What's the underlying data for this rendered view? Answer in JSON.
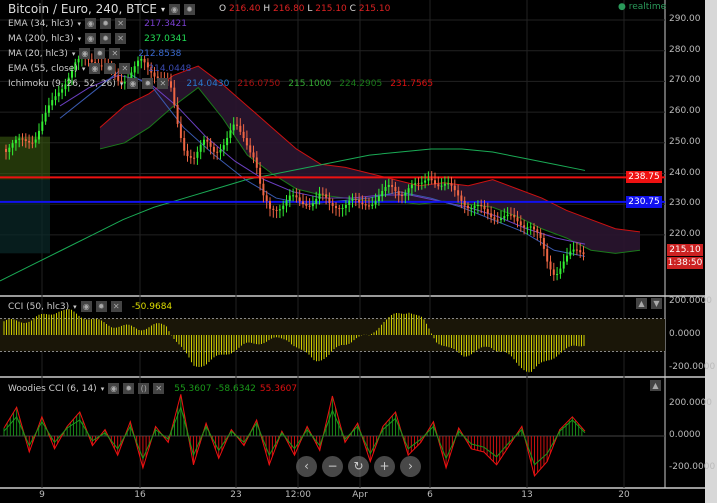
{
  "header": {
    "symbol": "Bitcoin / Euro, 240, BTCE",
    "o_label": "O",
    "o": "216.40",
    "h_label": "H",
    "h": "216.80",
    "l_label": "L",
    "l": "215.10",
    "c_label": "C",
    "c": "215.10",
    "realtime": "realtime"
  },
  "legends": [
    {
      "name": "EMA (34, hlc3)",
      "values": [
        "217.3421"
      ],
      "colors": [
        "#7a3fd0"
      ]
    },
    {
      "name": "MA (200, hlc3)",
      "values": [
        "237.0341"
      ],
      "colors": [
        "#22dd55"
      ]
    },
    {
      "name": "MA (20, hlc3)",
      "values": [
        "212.8538"
      ],
      "colors": [
        "#3a6ad0"
      ]
    },
    {
      "name": "EMA (55, close)",
      "values": [
        "214.0448"
      ],
      "colors": [
        "#3a4ab0"
      ]
    },
    {
      "name": "Ichimoku (9, 26, 52, 26)",
      "values": [
        "214.0430",
        "216.0750",
        "215.1000",
        "224.2905",
        "231.7565"
      ],
      "colors": [
        "#2a7ad0",
        "#aa1111",
        "#33aa33",
        "#1a7a1a",
        "#dd1111"
      ]
    }
  ],
  "cci": {
    "name": "CCI (50, hlc3)",
    "value": "-50.9684",
    "color": "#dddd00"
  },
  "woodies": {
    "name": "Woodies CCI (6, 14)",
    "values": [
      "55.3607",
      "-58.6342",
      "55.3607"
    ],
    "colors": [
      "#1a9a1a",
      "#1a9a1a",
      "#dd1111"
    ]
  },
  "price_tags": [
    {
      "value": "238.75",
      "color": "#ee1111"
    },
    {
      "value": "230.75",
      "color": "#1111ee"
    },
    {
      "value": "215.10",
      "color": "#cc2222"
    },
    {
      "value": "1:38:50",
      "color": "#cc2222"
    }
  ],
  "nav_buttons": [
    "‹",
    "−",
    "↻",
    "+",
    "›"
  ],
  "chart_data": {
    "type": "candlestick",
    "price_axis": {
      "ticks": [
        "290.00",
        "280.00",
        "270.00",
        "260.00",
        "250.00",
        "240.00",
        "230.00",
        "220.00"
      ],
      "range": [
        213,
        293
      ]
    },
    "x_ticks": [
      "9",
      "16",
      "23",
      "12:00",
      "Apr",
      "6",
      "13",
      "20"
    ],
    "close": [
      248,
      250,
      252,
      258,
      268,
      275,
      278,
      276,
      272,
      270,
      273,
      276,
      274,
      272,
      268,
      255,
      248,
      245,
      250,
      248,
      250,
      255,
      252,
      245,
      232,
      228,
      230,
      232,
      230,
      231,
      233,
      229,
      230,
      231,
      229,
      231,
      233,
      235,
      234,
      236,
      235,
      240,
      236,
      235,
      233,
      229,
      228,
      227,
      226,
      225,
      224,
      224,
      218,
      210,
      208,
      212,
      214,
      215
    ],
    "ma200": [
      205,
      210,
      215,
      220,
      225,
      229,
      232,
      235,
      238,
      240,
      242,
      244,
      246,
      247,
      248,
      248,
      247,
      245,
      243,
      241
    ],
    "ema34": [
      262,
      268,
      272,
      270,
      262,
      252,
      244,
      238,
      234,
      232,
      232,
      233,
      233,
      231,
      229,
      226,
      222,
      219,
      217
    ],
    "ma20": [
      258,
      266,
      274,
      268,
      255,
      246,
      238,
      232,
      230,
      231,
      232,
      234,
      232,
      229,
      225,
      221,
      215,
      213
    ],
    "cloud_upper": [
      255,
      262,
      266,
      272,
      275,
      269,
      262,
      255,
      248,
      243,
      242,
      240,
      238,
      236,
      237,
      236,
      238,
      235,
      232,
      228,
      225,
      222,
      221
    ],
    "cloud_lower": [
      248,
      250,
      255,
      262,
      268,
      258,
      246,
      240,
      235,
      233,
      232,
      231,
      231,
      230,
      231,
      230,
      229,
      226,
      222,
      219,
      215,
      214,
      215
    ],
    "horizontal_lines": [
      238.75,
      230.75
    ],
    "cci_values": [
      80,
      85,
      90,
      120,
      150,
      140,
      110,
      80,
      60,
      50,
      40,
      55,
      60,
      -60,
      -190,
      -170,
      -130,
      -90,
      -60,
      -40,
      -30,
      -20,
      -100,
      -150,
      -130,
      -60,
      -20,
      -10,
      80,
      120,
      150,
      90,
      -30,
      -90,
      -120,
      -100,
      -70,
      -100,
      -180,
      -220,
      -170,
      -110,
      -80,
      -50
    ],
    "cci_ylim": [
      -250,
      250
    ],
    "woodies_cci": [
      50,
      180,
      -100,
      120,
      -80,
      60,
      150,
      -60,
      40,
      -120,
      90,
      -200,
      60,
      -40,
      260,
      -180,
      80,
      -140,
      40,
      -60,
      100,
      -180,
      30,
      -120,
      60,
      -90,
      250,
      -40,
      80,
      -160,
      60,
      150,
      -120,
      -40,
      90,
      -200,
      50,
      -80,
      -100,
      -180,
      -60,
      60,
      -250,
      -160,
      40,
      120,
      30
    ],
    "woodies_turbo": [
      30,
      120,
      -60,
      90,
      -40,
      50,
      100,
      -30,
      20,
      -80,
      60,
      -140,
      40,
      -20,
      180,
      -120,
      60,
      -90,
      30,
      -40,
      80,
      -120,
      20,
      -80,
      40,
      -60,
      160,
      -20,
      60,
      -110,
      40,
      110,
      -80,
      -20,
      60,
      -140,
      30,
      -50,
      -70,
      -130,
      -40,
      40,
      -180,
      -110,
      30,
      100,
      20
    ],
    "woodies_ylim": [
      -250,
      250
    ],
    "woodies_ticks": [
      "200.0000",
      "0.0000",
      "-200.0000"
    ],
    "cci_ticks": [
      "200.0000",
      "0.0000",
      "-200.0000"
    ]
  }
}
